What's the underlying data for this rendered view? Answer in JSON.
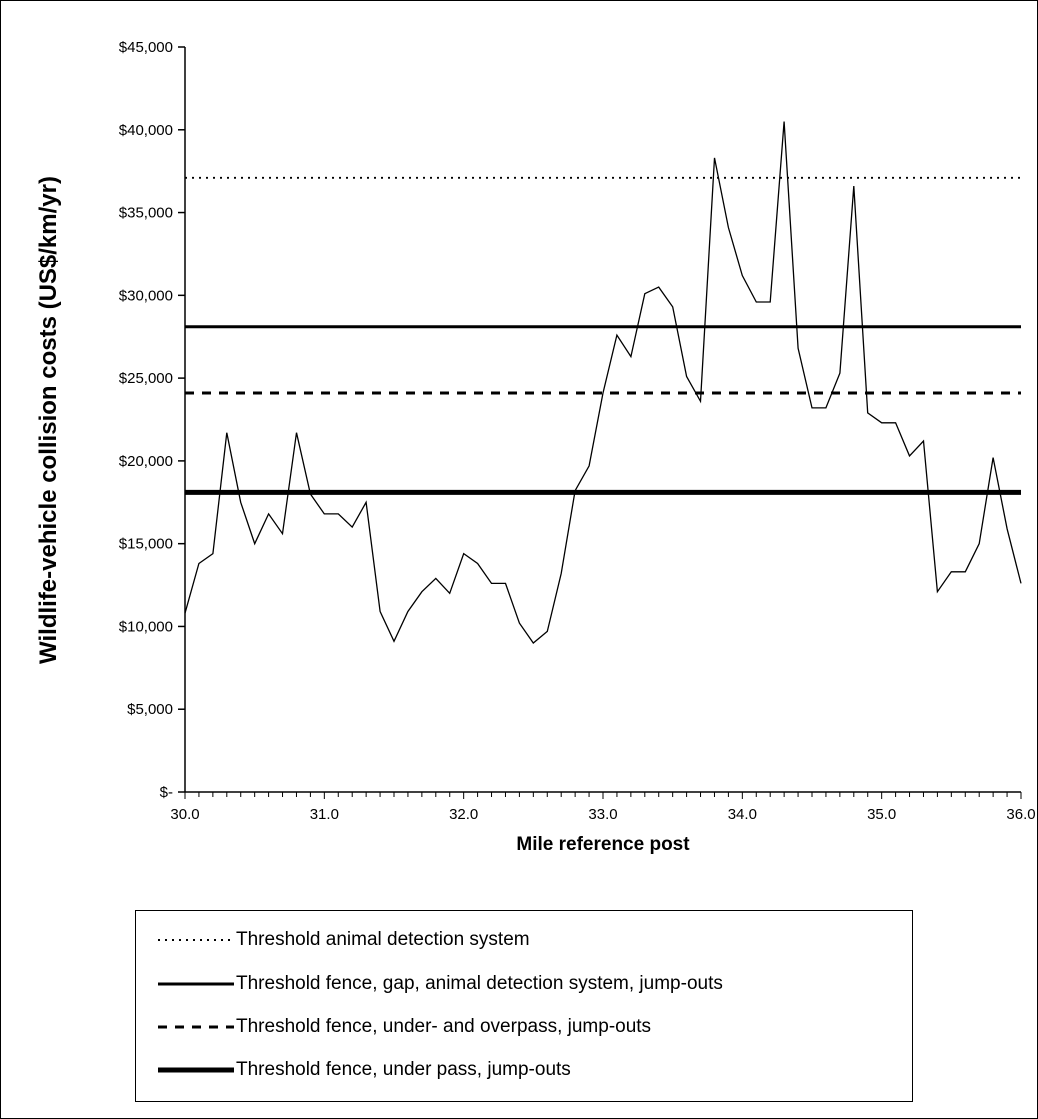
{
  "chart_data": {
    "type": "line",
    "title": "",
    "xlabel": "Mile reference post",
    "ylabel": "Wildlife-vehicle collision costs (US$/km/yr)",
    "xlim": [
      30.0,
      36.0
    ],
    "ylim": [
      0,
      45000
    ],
    "x_ticks": [
      30.0,
      31.0,
      32.0,
      33.0,
      34.0,
      35.0,
      36.0
    ],
    "x_tick_labels": [
      "30.0",
      "31.0",
      "32.0",
      "33.0",
      "34.0",
      "35.0",
      "36.0"
    ],
    "y_ticks": [
      0,
      5000,
      10000,
      15000,
      20000,
      25000,
      30000,
      35000,
      40000,
      45000
    ],
    "y_tick_labels": [
      "$-",
      "$5,000",
      "$10,000",
      "$15,000",
      "$20,000",
      "$25,000",
      "$30,000",
      "$35,000",
      "$40,000",
      "$45,000"
    ],
    "grid": false,
    "legend_position": "bottom",
    "series": [
      {
        "values": [
          10800,
          13800,
          14400,
          21700,
          17500,
          15000,
          16800,
          15600,
          21700,
          18000,
          16800,
          16800,
          16000,
          17500,
          10900,
          9100,
          10900,
          12100,
          12900,
          12000,
          14400,
          13800,
          12600,
          12600,
          10200,
          9000,
          9700,
          13200,
          18200,
          19700,
          24100,
          27600,
          26300,
          30100,
          30500,
          29300,
          25100,
          23600,
          38300,
          34100,
          31200,
          29600,
          29600,
          40500,
          26800,
          23200,
          23200,
          25300,
          36600,
          22900,
          22300,
          22300,
          20300,
          21200,
          12100,
          13300,
          13300,
          15000,
          20200,
          15900,
          12600
        ],
        "color": "#000000"
      }
    ],
    "thresholds": [
      {
        "name": "Threshold animal detection system",
        "value": 37100,
        "style": "dotted",
        "color": "#000000"
      },
      {
        "name": "Threshold fence, gap, animal detection system, jump-outs",
        "value": 28100,
        "style": "solid",
        "color": "#000000"
      },
      {
        "name": "Threshold fence, under- and overpass, jump-outs",
        "value": 24100,
        "style": "dashed",
        "color": "#000000"
      },
      {
        "name": "Threshold fence, under pass, jump-outs",
        "value": 18100,
        "style": "thick",
        "color": "#000000"
      }
    ]
  },
  "legend": {
    "items": [
      {
        "label": "Threshold animal detection system",
        "style": "dotted"
      },
      {
        "label": "Threshold fence, gap, animal detection system, jump-outs",
        "style": "solid"
      },
      {
        "label": "Threshold fence, under- and overpass, jump-outs",
        "style": "dashed"
      },
      {
        "label": "Threshold fence, under pass, jump-outs",
        "style": "thick"
      }
    ]
  }
}
